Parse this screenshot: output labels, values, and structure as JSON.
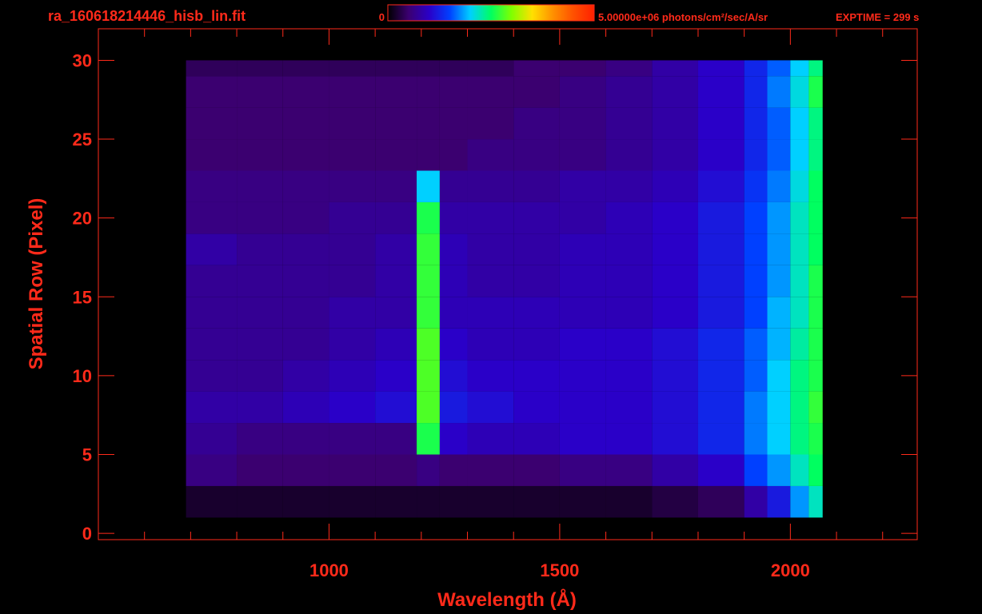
{
  "chart_data": {
    "type": "heatmap",
    "title": "ra_160618214446_hisb_lin.fit",
    "exptime": "EXPTIME = 299 s",
    "colorbar": {
      "min": 0,
      "max": {
        "value": 5000000,
        "label": "5.00000e+06"
      },
      "unit": "photons/cm²/sec/A/sr",
      "colors": [
        "#000000",
        "#3b0070",
        "#2a00c8",
        "#0040ff",
        "#00d0ff",
        "#00ff60",
        "#80ff00",
        "#ffe000",
        "#ff9000",
        "#ff5000",
        "#ff2000"
      ]
    },
    "x_label": "Wavelength (Å)",
    "y_label": "Spatial Row (Pixel)",
    "xlim": [
      500,
      2275
    ],
    "ylim": [
      -0.4,
      32
    ],
    "xticks": [
      1000,
      1500,
      2000
    ],
    "xminor": [
      600,
      700,
      800,
      900,
      1100,
      1200,
      1300,
      1400,
      1600,
      1700,
      1800,
      1900,
      2100,
      2200
    ],
    "yticks": [
      0,
      5,
      10,
      15,
      20,
      25,
      30
    ],
    "x_edges": [
      690,
      800,
      900,
      1000,
      1100,
      1190,
      1240,
      1300,
      1400,
      1500,
      1600,
      1700,
      1800,
      1900,
      1950,
      2000,
      2040,
      2070
    ],
    "y_edges": [
      1,
      3,
      5,
      7,
      9,
      11,
      13,
      15,
      17,
      19,
      21,
      23,
      25,
      27,
      29,
      30
    ],
    "values": [
      [
        200000.0,
        200000.0,
        200000.0,
        200000.0,
        200000.0,
        200000.0,
        200000.0,
        200000.0,
        200000.0,
        200000.0,
        200000.0,
        300000.0,
        400000.0,
        800000.0,
        1200000.0,
        1800000.0,
        2200000.0
      ],
      [
        600000.0,
        500000.0,
        500000.0,
        500000.0,
        500000.0,
        600000.0,
        500000.0,
        500000.0,
        500000.0,
        600000.0,
        600000.0,
        800000.0,
        1000000.0,
        1500000.0,
        1800000.0,
        2200000.0,
        2500000.0
      ],
      [
        700000.0,
        600000.0,
        600000.0,
        600000.0,
        600000.0,
        2600000.0,
        1000000.0,
        900000.0,
        900000.0,
        1000000.0,
        1000000.0,
        1100000.0,
        1300000.0,
        1700000.0,
        2000000.0,
        2400000.0,
        2600000.0
      ],
      [
        800000.0,
        800000.0,
        900000.0,
        1000000.0,
        1100000.0,
        2800000.0,
        1200000.0,
        1100000.0,
        1000000.0,
        1000000.0,
        1000000.0,
        1100000.0,
        1300000.0,
        1700000.0,
        2000000.0,
        2400000.0,
        2700000.0
      ],
      [
        700000.0,
        700000.0,
        800000.0,
        900000.0,
        1000000.0,
        2800000.0,
        1100000.0,
        1000000.0,
        1000000.0,
        1000000.0,
        1000000.0,
        1100000.0,
        1300000.0,
        1600000.0,
        2000000.0,
        2400000.0,
        2600000.0
      ],
      [
        700000.0,
        700000.0,
        700000.0,
        800000.0,
        900000.0,
        2800000.0,
        1000000.0,
        900000.0,
        900000.0,
        1000000.0,
        1000000.0,
        1100000.0,
        1300000.0,
        1600000.0,
        1900000.0,
        2300000.0,
        2600000.0
      ],
      [
        700000.0,
        700000.0,
        700000.0,
        800000.0,
        800000.0,
        2700000.0,
        900000.0,
        900000.0,
        900000.0,
        900000.0,
        900000.0,
        1000000.0,
        1200000.0,
        1500000.0,
        1900000.0,
        2200000.0,
        2600000.0
      ],
      [
        700000.0,
        700000.0,
        700000.0,
        700000.0,
        800000.0,
        2700000.0,
        900000.0,
        800000.0,
        800000.0,
        900000.0,
        900000.0,
        1000000.0,
        1200000.0,
        1500000.0,
        1800000.0,
        2200000.0,
        2600000.0
      ],
      [
        800000.0,
        700000.0,
        700000.0,
        700000.0,
        800000.0,
        2700000.0,
        900000.0,
        800000.0,
        800000.0,
        900000.0,
        900000.0,
        1000000.0,
        1200000.0,
        1500000.0,
        1800000.0,
        2200000.0,
        2500000.0
      ],
      [
        600000.0,
        600000.0,
        600000.0,
        700000.0,
        700000.0,
        2600000.0,
        800000.0,
        800000.0,
        800000.0,
        800000.0,
        900000.0,
        1000000.0,
        1200000.0,
        1500000.0,
        1800000.0,
        2200000.0,
        2500000.0
      ],
      [
        600000.0,
        600000.0,
        600000.0,
        600000.0,
        600000.0,
        2000000.0,
        700000.0,
        700000.0,
        700000.0,
        800000.0,
        800000.0,
        900000.0,
        1100000.0,
        1400000.0,
        1700000.0,
        2100000.0,
        2500000.0
      ],
      [
        500000.0,
        500000.0,
        500000.0,
        500000.0,
        500000.0,
        500000.0,
        500000.0,
        600000.0,
        600000.0,
        600000.0,
        700000.0,
        800000.0,
        1000000.0,
        1300000.0,
        1600000.0,
        2000000.0,
        2400000.0
      ],
      [
        500000.0,
        500000.0,
        500000.0,
        500000.0,
        500000.0,
        500000.0,
        500000.0,
        500000.0,
        600000.0,
        600000.0,
        700000.0,
        800000.0,
        1000000.0,
        1300000.0,
        1600000.0,
        2000000.0,
        2400000.0
      ],
      [
        500000.0,
        500000.0,
        500000.0,
        500000.0,
        500000.0,
        500000.0,
        500000.0,
        500000.0,
        500000.0,
        600000.0,
        700000.0,
        800000.0,
        1000000.0,
        1300000.0,
        1700000.0,
        2100000.0,
        2600000.0
      ],
      [
        400000.0,
        400000.0,
        400000.0,
        400000.0,
        400000.0,
        400000.0,
        400000.0,
        400000.0,
        500000.0,
        500000.0,
        600000.0,
        800000.0,
        1000000.0,
        1300000.0,
        1600000.0,
        2000000.0,
        2400000.0
      ]
    ]
  }
}
